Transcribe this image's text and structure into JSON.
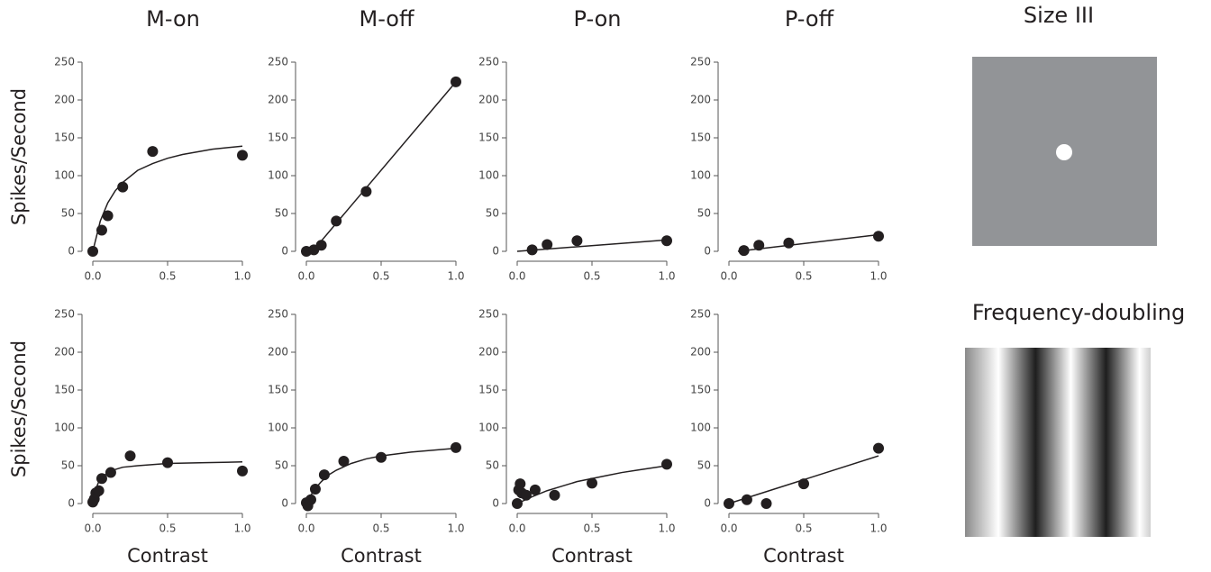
{
  "chart_data": [
    {
      "type": "scatter",
      "title": "M-on",
      "ylabel": "Spikes/Second",
      "xlim": [
        0,
        1
      ],
      "ylim": [
        0,
        250
      ],
      "xticks": [
        {
          "value": 0,
          "label": "0.0"
        },
        0.5,
        {
          "value": 1,
          "label": "1.0"
        }
      ],
      "yticks": [
        0,
        50,
        100,
        150,
        200,
        250
      ],
      "series": [
        {
          "color": "#231f20",
          "x": [
            0,
            0.06,
            0.1,
            0.2,
            0.4,
            1
          ],
          "values": [
            0,
            28,
            47,
            85,
            132,
            127
          ]
        },
        {
          "type": "line",
          "color": "#231f20",
          "x": [
            0,
            0.05,
            0.1,
            0.15,
            0.2,
            0.3,
            0.4,
            0.5,
            0.6,
            0.8,
            1
          ],
          "values": [
            0,
            40,
            64,
            80,
            91,
            107,
            116,
            123,
            128,
            135,
            139
          ]
        }
      ]
    },
    {
      "type": "scatter",
      "title": "M-off",
      "xlim": [
        0,
        1
      ],
      "ylim": [
        0,
        250
      ],
      "xticks": [
        {
          "value": 0,
          "label": "0.0"
        },
        0.5,
        {
          "value": 1,
          "label": "1.0"
        }
      ],
      "yticks": [
        0,
        50,
        100,
        150,
        200,
        250
      ],
      "series": [
        {
          "color": "#231f20",
          "x": [
            0,
            0.05,
            0.1,
            0.2,
            0.4,
            1
          ],
          "values": [
            0,
            2,
            8,
            40,
            79,
            224
          ]
        },
        {
          "type": "line",
          "color": "#231f20",
          "x": [
            0.02,
            1
          ],
          "values": [
            -5,
            224
          ]
        }
      ]
    },
    {
      "type": "scatter",
      "title": "P-on",
      "xlim": [
        0,
        1
      ],
      "ylim": [
        0,
        250
      ],
      "xticks": [
        {
          "value": 0,
          "label": "0.0"
        },
        0.5,
        {
          "value": 1,
          "label": "1.0"
        }
      ],
      "yticks": [
        0,
        50,
        100,
        150,
        200,
        250
      ],
      "series": [
        {
          "color": "#231f20",
          "x": [
            0.1,
            0.2,
            0.4,
            1
          ],
          "values": [
            2,
            9,
            14,
            14
          ]
        },
        {
          "type": "line",
          "color": "#231f20",
          "x": [
            0,
            1
          ],
          "values": [
            0,
            15
          ]
        }
      ]
    },
    {
      "type": "scatter",
      "title": "P-off",
      "xlim": [
        0,
        1
      ],
      "ylim": [
        0,
        250
      ],
      "xticks": [
        {
          "value": 0,
          "label": "0.0"
        },
        0.5,
        {
          "value": 1,
          "label": "1.0"
        }
      ],
      "yticks": [
        0,
        50,
        100,
        150,
        200,
        250
      ],
      "series": [
        {
          "color": "#231f20",
          "x": [
            0.1,
            0.2,
            0.4,
            1
          ],
          "values": [
            1,
            8,
            11,
            20
          ]
        },
        {
          "type": "line",
          "color": "#231f20",
          "x": [
            0.06,
            1
          ],
          "values": [
            0,
            22
          ]
        }
      ]
    },
    {
      "type": "scatter",
      "ylabel": "Spikes/Second",
      "xlabel": "Contrast",
      "xlim": [
        0,
        1
      ],
      "ylim": [
        0,
        250
      ],
      "xticks": [
        {
          "value": 0,
          "label": "0.0"
        },
        0.5,
        {
          "value": 1,
          "label": "1.0"
        }
      ],
      "yticks": [
        0,
        50,
        100,
        150,
        200,
        250
      ],
      "series": [
        {
          "color": "#231f20",
          "x": [
            0,
            0.01,
            0.02,
            0.04,
            0.06,
            0.12,
            0.25,
            0.5,
            1
          ],
          "values": [
            2,
            6,
            14,
            17,
            33,
            41,
            63,
            54,
            43
          ]
        },
        {
          "type": "line",
          "color": "#231f20",
          "x": [
            0,
            0.01,
            0.02,
            0.04,
            0.06,
            0.1,
            0.15,
            0.2,
            0.3,
            0.5,
            0.75,
            1
          ],
          "values": [
            0,
            11,
            19,
            29,
            34,
            41,
            45,
            48,
            50,
            53,
            54,
            55
          ]
        }
      ]
    },
    {
      "type": "scatter",
      "xlabel": "Contrast",
      "xlim": [
        0,
        1
      ],
      "ylim": [
        0,
        250
      ],
      "xticks": [
        {
          "value": 0,
          "label": "0.0"
        },
        0.5,
        {
          "value": 1,
          "label": "1.0"
        }
      ],
      "yticks": [
        0,
        50,
        100,
        150,
        200,
        250
      ],
      "series": [
        {
          "color": "#231f20",
          "x": [
            0,
            0.01,
            0.03,
            0.06,
            0.12,
            0.25,
            0.5,
            1
          ],
          "values": [
            1,
            -3,
            5,
            19,
            38,
            56,
            61,
            74
          ]
        },
        {
          "type": "line",
          "color": "#231f20",
          "x": [
            0,
            0.03,
            0.06,
            0.1,
            0.15,
            0.2,
            0.3,
            0.4,
            0.5,
            0.7,
            1
          ],
          "values": [
            0,
            11,
            20,
            29,
            38,
            44,
            53,
            59,
            63,
            68,
            73
          ]
        }
      ]
    },
    {
      "type": "scatter",
      "xlabel": "Contrast",
      "xlim": [
        0,
        1
      ],
      "ylim": [
        0,
        250
      ],
      "xticks": [
        {
          "value": 0,
          "label": "0.0"
        },
        0.5,
        {
          "value": 1,
          "label": "1.0"
        }
      ],
      "yticks": [
        0,
        50,
        100,
        150,
        200,
        250
      ],
      "series": [
        {
          "color": "#231f20",
          "x": [
            0,
            0.01,
            0.02,
            0.03,
            0.06,
            0.12,
            0.25,
            0.5,
            1
          ],
          "values": [
            0,
            18,
            26,
            14,
            11,
            18,
            11,
            27,
            52
          ]
        },
        {
          "type": "line",
          "color": "#231f20",
          "x": [
            0,
            0.1,
            0.2,
            0.3,
            0.4,
            0.5,
            0.6,
            0.7,
            0.8,
            0.9,
            1
          ],
          "values": [
            0,
            9,
            17,
            23,
            29,
            33,
            37,
            41,
            44,
            47,
            50
          ]
        }
      ]
    },
    {
      "type": "scatter",
      "xlabel": "Contrast",
      "xlim": [
        0,
        1
      ],
      "ylim": [
        0,
        250
      ],
      "xticks": [
        {
          "value": 0,
          "label": "0.0"
        },
        0.5,
        {
          "value": 1,
          "label": "1.0"
        }
      ],
      "yticks": [
        0,
        50,
        100,
        150,
        200,
        250
      ],
      "series": [
        {
          "color": "#231f20",
          "x": [
            0,
            0.12,
            0.25,
            0.5,
            1
          ],
          "values": [
            0,
            5,
            0,
            26,
            73
          ]
        },
        {
          "type": "line",
          "color": "#231f20",
          "x": [
            0,
            1
          ],
          "values": [
            0,
            63
          ]
        }
      ]
    }
  ],
  "stimuli": [
    {
      "title": "Size III"
    },
    {
      "title": "Frequency-doubling"
    }
  ]
}
